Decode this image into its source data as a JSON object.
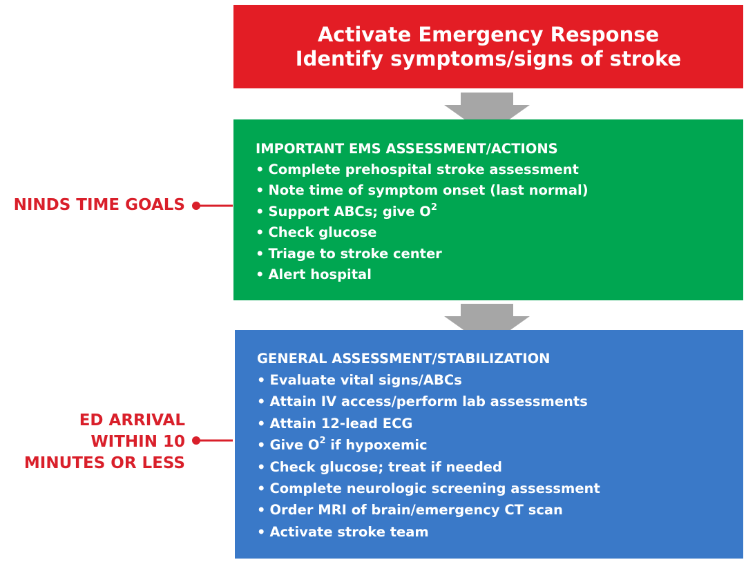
{
  "colors": {
    "red_box": "#e31d25",
    "green_box": "#00a651",
    "blue_box": "#3a79c8",
    "arrow": "#a6a6a6",
    "label_red": "#d91f2a"
  },
  "red_box": {
    "line1": "Activate Emergency Response",
    "line2": "Identify symptoms/signs of stroke"
  },
  "green_box": {
    "title": "IMPORTANT EMS ASSESSMENT/ACTIONS",
    "items": [
      {
        "text": "Complete prehospital stroke assessment",
        "sup": ""
      },
      {
        "text": "Note time of symptom onset (last normal)",
        "sup": ""
      },
      {
        "text": "Support ABCs; give O",
        "sup": "2",
        "after": ""
      },
      {
        "text": "Check glucose",
        "sup": ""
      },
      {
        "text": "Triage to stroke center",
        "sup": ""
      },
      {
        "text": "Alert hospital",
        "sup": ""
      }
    ]
  },
  "blue_box": {
    "title": "GENERAL ASSESSMENT/STABILIZATION",
    "items": [
      {
        "text": "Evaluate vital signs/ABCs",
        "sup": ""
      },
      {
        "text": "Attain IV access/perform lab assessments",
        "sup": ""
      },
      {
        "text": "Attain 12-lead ECG",
        "sup": ""
      },
      {
        "text": "Give O",
        "sup": "2",
        "after": " if hypoxemic"
      },
      {
        "text": "Check glucose; treat if needed",
        "sup": ""
      },
      {
        "text": "Complete neurologic screening assessment",
        "sup": ""
      },
      {
        "text": "Order MRI of brain/emergency CT scan",
        "sup": ""
      },
      {
        "text": "Activate stroke team",
        "sup": ""
      }
    ]
  },
  "bullet": "•",
  "side_labels": {
    "ninds": [
      "NINDS TIME GOALS"
    ],
    "ed_arrival": [
      "ED ARRIVAL",
      "WITHIN 10",
      "MINUTES OR LESS"
    ]
  }
}
